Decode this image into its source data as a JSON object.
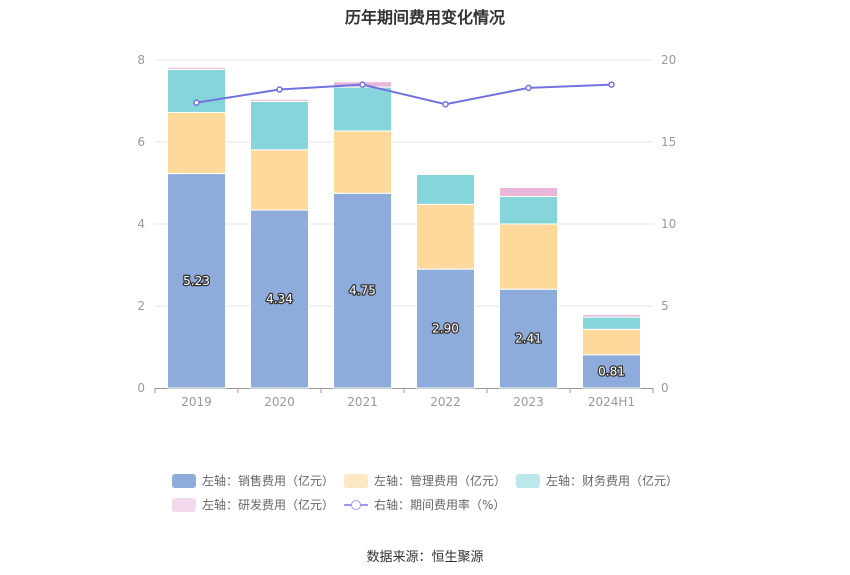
{
  "title": "历年期间费用变化情况",
  "source": "数据来源：恒生聚源",
  "chart_data": {
    "type": "bar",
    "stacked": true,
    "categories": [
      "2019",
      "2020",
      "2021",
      "2022",
      "2023",
      "2024H1"
    ],
    "left_axis": {
      "ylim": [
        0,
        8
      ],
      "ticks": [
        "0",
        "2",
        "4",
        "6",
        "8"
      ]
    },
    "right_axis": {
      "ylim": [
        0,
        20
      ],
      "ticks": [
        "0",
        "5",
        "10",
        "15",
        "20"
      ]
    },
    "series": [
      {
        "name": "左轴：销售费用（亿元）",
        "type": "bar",
        "axis": "left",
        "color": "#8eacdb",
        "values": [
          5.23,
          4.34,
          4.75,
          2.9,
          2.41,
          0.81
        ],
        "labels": [
          "5.23",
          "4.34",
          "4.75",
          "2.90",
          "2.41",
          "0.81"
        ]
      },
      {
        "name": "左轴：管理费用（亿元）",
        "type": "bar",
        "axis": "left",
        "color": "#fed99b",
        "legend_color": "#fde8c5",
        "values": [
          1.49,
          1.47,
          1.52,
          1.58,
          1.59,
          0.62
        ]
      },
      {
        "name": "左轴：财务费用（亿元）",
        "type": "bar",
        "axis": "left",
        "color": "#86d5da",
        "legend_color": "#bde8eb",
        "values": [
          1.05,
          1.18,
          1.07,
          0.73,
          0.67,
          0.3
        ]
      },
      {
        "name": "左轴：研发费用（亿元）",
        "type": "bar",
        "axis": "left",
        "color": "#e7b6d9",
        "legend_color": "#f2d9ec",
        "values": [
          0.05,
          0.05,
          0.13,
          0.02,
          0.22,
          0.06
        ]
      },
      {
        "name": "右轴：期间费用率（%）",
        "type": "line",
        "axis": "right",
        "color": "#7272e0",
        "values": [
          17.4,
          18.2,
          18.5,
          17.3,
          18.3,
          18.5
        ]
      }
    ],
    "grid": true,
    "legend_position": "bottom"
  }
}
